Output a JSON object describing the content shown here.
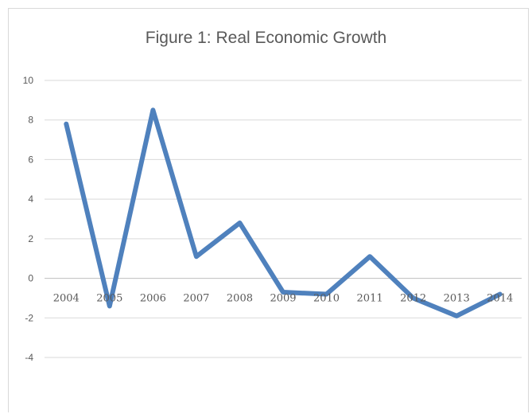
{
  "chart_data": {
    "type": "line",
    "title": "Figure 1: Real Economic Growth",
    "xlabel": "",
    "ylabel": "",
    "categories": [
      "2004",
      "2005",
      "2006",
      "2007",
      "2008",
      "2009",
      "2010",
      "2011",
      "2012",
      "2013",
      "2014"
    ],
    "series": [
      {
        "values": [
          7.8,
          -1.4,
          8.5,
          1.1,
          2.8,
          -0.7,
          -0.8,
          1.1,
          -1.0,
          -1.9,
          -0.8
        ]
      }
    ],
    "ylim": [
      -4,
      10
    ],
    "yticks": [
      "10",
      "8",
      "6",
      "4",
      "2",
      "0",
      "-2",
      "-4"
    ],
    "grid": true,
    "legend": "none",
    "line_color": "#4f81bd",
    "grid_color": "#d9d9d9"
  }
}
